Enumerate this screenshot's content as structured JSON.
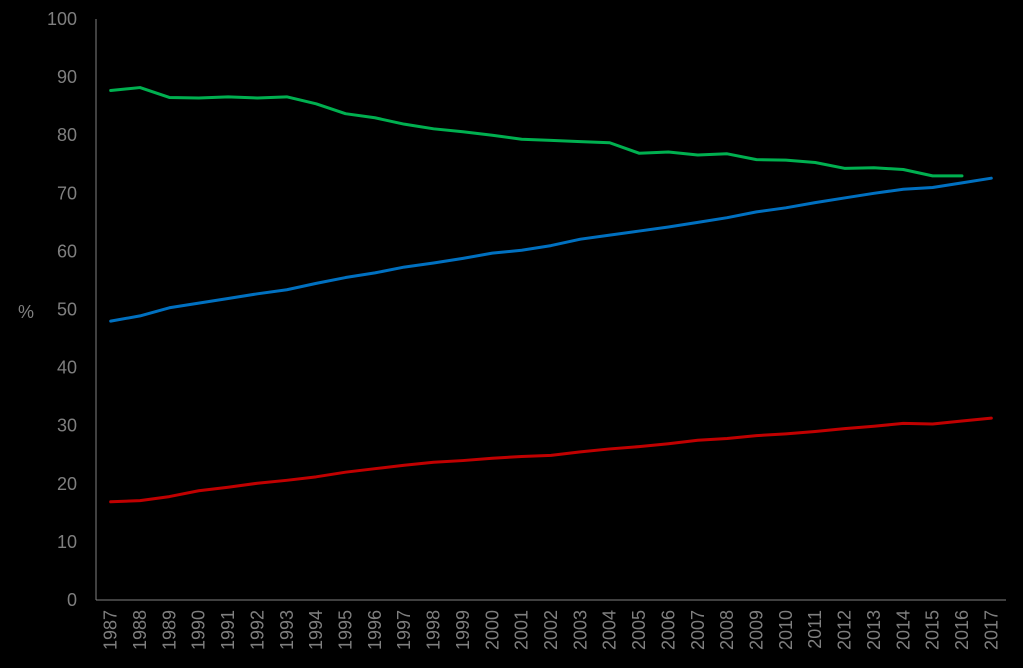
{
  "chart_data": {
    "type": "line",
    "title": "",
    "xlabel": "",
    "ylabel": "%",
    "ylim": [
      0,
      100
    ],
    "yticks": [
      "0",
      "10",
      "20",
      "30",
      "40",
      "50",
      "60",
      "70",
      "80",
      "90",
      "100"
    ],
    "grid": false,
    "legend": "none",
    "categories": [
      "1987",
      "1988",
      "1989",
      "1990",
      "1991",
      "1992",
      "1993",
      "1994",
      "1995",
      "1996",
      "1997",
      "1998",
      "1999",
      "2000",
      "2001",
      "2002",
      "2003",
      "2004",
      "2005",
      "2006",
      "2007",
      "2008",
      "2009",
      "2010",
      "2011",
      "2012",
      "2013",
      "2014",
      "2015",
      "2016",
      "2017"
    ],
    "series": [
      {
        "color": "#00b050",
        "values": [
          87.7,
          88.2,
          86.5,
          86.4,
          86.6,
          86.4,
          86.6,
          85.4,
          83.7,
          83.0,
          81.9,
          81.1,
          80.6,
          80.0,
          79.3,
          79.1,
          78.9,
          78.7,
          76.9,
          77.1,
          76.6,
          76.8,
          75.8,
          75.7,
          75.3,
          74.3,
          74.4,
          74.1,
          73.0,
          73.0,
          null
        ]
      },
      {
        "color": "#0070c0",
        "values": [
          48.0,
          48.9,
          50.3,
          51.1,
          51.9,
          52.7,
          53.4,
          54.5,
          55.5,
          56.3,
          57.3,
          58.0,
          58.8,
          59.7,
          60.2,
          61.0,
          62.1,
          62.8,
          63.5,
          64.2,
          65.0,
          65.8,
          66.8,
          67.5,
          68.4,
          69.2,
          70.0,
          70.7,
          71.0,
          71.8,
          72.6
        ]
      },
      {
        "color": "#c00000",
        "values": [
          16.9,
          17.1,
          17.8,
          18.8,
          19.4,
          20.1,
          20.6,
          21.2,
          22.0,
          22.6,
          23.2,
          23.7,
          24.0,
          24.4,
          24.7,
          24.9,
          25.5,
          26.0,
          26.4,
          26.9,
          27.5,
          27.8,
          28.3,
          28.6,
          29.0,
          29.5,
          29.9,
          30.4,
          30.3,
          30.8,
          31.3
        ]
      }
    ]
  }
}
